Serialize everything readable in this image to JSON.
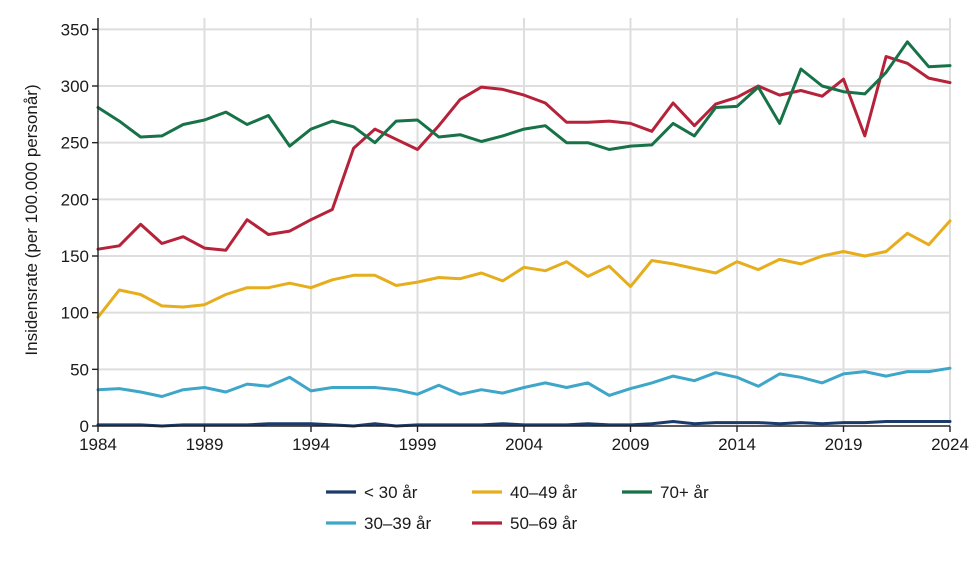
{
  "chart_data": {
    "type": "line",
    "title": "",
    "xlabel": "",
    "ylabel": "Insidensrate (per 100.000 personår)",
    "xlim": [
      1984,
      2024
    ],
    "ylim": [
      0,
      360
    ],
    "xticks": [
      1984,
      1989,
      1994,
      1999,
      2004,
      2009,
      2014,
      2019,
      2024
    ],
    "yticks": [
      0,
      50,
      100,
      150,
      200,
      250,
      300,
      350
    ],
    "grid": true,
    "legend_position": "bottom",
    "x": [
      1984,
      1985,
      1986,
      1987,
      1988,
      1989,
      1990,
      1991,
      1992,
      1993,
      1994,
      1995,
      1996,
      1997,
      1998,
      1999,
      2000,
      2001,
      2002,
      2003,
      2004,
      2005,
      2006,
      2007,
      2008,
      2009,
      2010,
      2011,
      2012,
      2013,
      2014,
      2015,
      2016,
      2017,
      2018,
      2019,
      2020,
      2021,
      2022,
      2023,
      2024
    ],
    "series": [
      {
        "name": "< 30 år",
        "color": "#1c3b6b",
        "values": [
          1,
          1,
          1,
          0,
          1,
          1,
          1,
          1,
          2,
          2,
          2,
          1,
          0,
          2,
          0,
          1,
          1,
          1,
          1,
          2,
          1,
          1,
          1,
          2,
          1,
          1,
          2,
          4,
          2,
          3,
          3,
          3,
          2,
          3,
          2,
          3,
          3,
          4,
          4,
          4,
          4
        ]
      },
      {
        "name": "30–39 år",
        "color": "#3ea6c9",
        "values": [
          32,
          33,
          30,
          26,
          32,
          34,
          30,
          37,
          35,
          43,
          31,
          34,
          34,
          34,
          32,
          28,
          36,
          28,
          32,
          29,
          34,
          38,
          34,
          38,
          27,
          33,
          38,
          44,
          40,
          47,
          43,
          35,
          46,
          43,
          38,
          46,
          48,
          44,
          48,
          48,
          51
        ]
      },
      {
        "name": "40–49 år",
        "color": "#e6ad1c",
        "values": [
          96,
          120,
          116,
          106,
          105,
          107,
          116,
          122,
          122,
          126,
          122,
          129,
          133,
          133,
          124,
          127,
          131,
          130,
          135,
          128,
          140,
          137,
          145,
          132,
          141,
          123,
          146,
          143,
          139,
          135,
          145,
          138,
          147,
          143,
          150,
          154,
          150,
          154,
          170,
          160,
          181
        ]
      },
      {
        "name": "50–69 år",
        "color": "#b5223a",
        "values": [
          156,
          159,
          178,
          161,
          167,
          157,
          155,
          182,
          169,
          172,
          182,
          191,
          245,
          262,
          253,
          244,
          265,
          288,
          299,
          297,
          292,
          285,
          268,
          268,
          269,
          267,
          260,
          285,
          265,
          284,
          290,
          300,
          292,
          296,
          291,
          306,
          256,
          326,
          320,
          307,
          303
        ]
      },
      {
        "name": "70+ år",
        "color": "#177247",
        "values": [
          281,
          269,
          255,
          256,
          266,
          270,
          277,
          266,
          274,
          247,
          262,
          269,
          264,
          250,
          269,
          270,
          255,
          257,
          251,
          256,
          262,
          265,
          250,
          250,
          244,
          247,
          248,
          267,
          256,
          281,
          282,
          299,
          267,
          315,
          300,
          295,
          293,
          312,
          339,
          317,
          318
        ]
      }
    ]
  }
}
